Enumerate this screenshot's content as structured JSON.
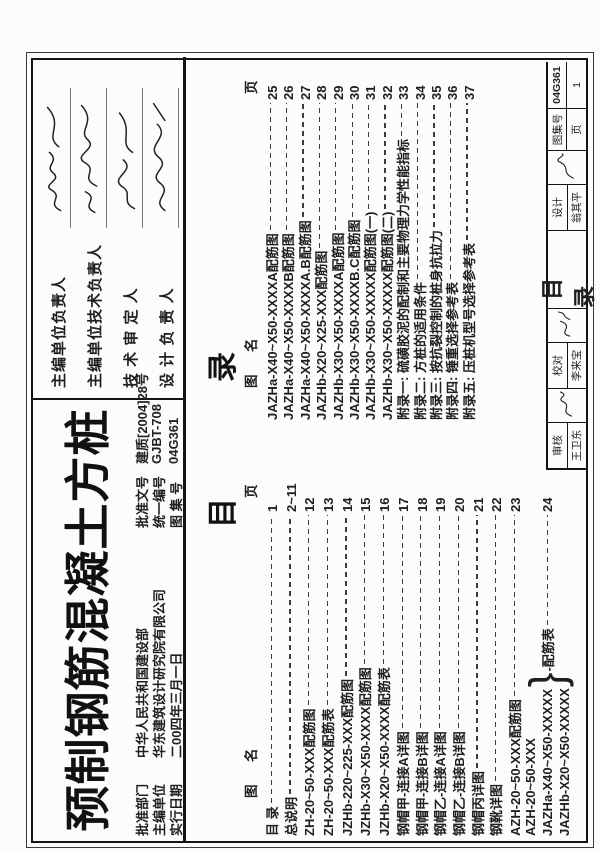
{
  "page": {
    "paper_color": "#fcfcfa",
    "ink_color": "#1f1f1f"
  },
  "title_block": {
    "atlas_title": "预制钢筋混凝土方桩",
    "info_rows": [
      {
        "label1": "批准部门",
        "value1": "中华人民共和国建设部",
        "label2": "批准文号",
        "value2": "建质[2004]28号"
      },
      {
        "label1": "主编单位",
        "value1": "华东建筑设计研究院有限公司",
        "label2": "统一编号",
        "value2": "GJBT-708"
      },
      {
        "label1": "实行日期",
        "value1": "二00四年三月一日",
        "label2": "图 集 号",
        "value2": "04G361"
      }
    ],
    "signature_rows": [
      {
        "label": "主编单位负责人",
        "signature": "handwritten-signature"
      },
      {
        "label": "主编单位技术负责人",
        "signature": "handwritten-signature"
      },
      {
        "label": "技 术 审 定 人",
        "signature": "handwritten-signature"
      },
      {
        "label": "设 计 负 责 人",
        "signature": "handwritten-signature"
      }
    ]
  },
  "toc": {
    "section_title_left": "目",
    "section_title_right": "录",
    "col_header_fig": "图",
    "col_header_name": "名",
    "col_header_page": "页",
    "left_entries": [
      {
        "name": "目 录",
        "page": "1"
      },
      {
        "name": "总说明",
        "page": "2~11"
      },
      {
        "name": "ZH-20~50-XXX配筋图",
        "page": "12"
      },
      {
        "name": "ZH-20~50-XXX配筋表",
        "page": "13"
      },
      {
        "name": "JZHb-220~225-XXX配筋图",
        "page": "14"
      },
      {
        "name": "JZHb-X30~X50-XXXX配筋图",
        "page": "15"
      },
      {
        "name": "JZHb-X20~X50-XXXX配筋表",
        "page": "16"
      },
      {
        "name": "钢帽甲-连接A详图",
        "page": "17"
      },
      {
        "name": "钢帽甲-连接B详图",
        "page": "18"
      },
      {
        "name": "钢帽乙-连接A详图",
        "page": "19"
      },
      {
        "name": "钢帽乙-连接B详图",
        "page": "20"
      },
      {
        "name": "钢帽丙详图",
        "page": "21"
      },
      {
        "name": "钢靴详图",
        "page": "22"
      },
      {
        "name": "AZH-20~50-XXX配筋图",
        "page": "23"
      }
    ],
    "left_brace_group": {
      "lines": [
        "AZH-20~50-XXX",
        "JAZHa-X40~X50-XXXXX",
        "JAZHb-X20~X50-XXXXX"
      ],
      "brace": "}",
      "label": "-配筋表",
      "page": "24"
    },
    "right_entries": [
      {
        "name": "JAZHa-X40~X50-XXXXA配筋图",
        "page": "25"
      },
      {
        "name": "JAZHa-X40~X50-XXXXB配筋图",
        "page": "26"
      },
      {
        "name": "JAZHa-X40~X50-XXXXA.B配筋图",
        "page": "27"
      },
      {
        "name": "JAZHb-X20~X25-XXX配筋图",
        "page": "28"
      },
      {
        "name": "JAZHb-X30~X50-XXXXA配筋图",
        "page": "29"
      },
      {
        "name": "JAZHb-X30~X50-XXXXB.C配筋图",
        "page": "30"
      },
      {
        "name": "JAZHb-X30~X50-XXXXX配筋图(一)",
        "page": "31"
      },
      {
        "name": "JAZHb-X30~X50-XXXXX配筋图(二)",
        "page": "32"
      },
      {
        "name": "附录一: 硫磺胶泥的配制和主要物理力学性能指标",
        "page": "33"
      },
      {
        "name": "附录二: 方桩的适用条件",
        "page": "34"
      },
      {
        "name": "附录三: 按抗裂控制的桩身抗拉力",
        "page": "35"
      },
      {
        "name": "附录四: 锤重选择参考表",
        "page": "36"
      },
      {
        "name": "附录五: 压桩机型号选择参考表",
        "page": "37"
      }
    ]
  },
  "footer": {
    "reviewer_label": "审核",
    "reviewer_name": "王卫东",
    "checker_label": "校对",
    "checker_name": "李来宝",
    "designer_label": "设计",
    "designer_name": "翁其平",
    "sheet_title": "目 录",
    "atlas_no_label": "图集号",
    "atlas_no": "04G361",
    "page_label": "页",
    "page_no": "1"
  }
}
